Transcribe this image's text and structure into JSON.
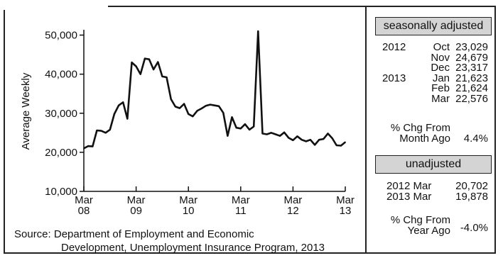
{
  "chart_data": {
    "type": "line",
    "title": "",
    "ylabel": "Average Weekly",
    "xlabel": "",
    "ylim": [
      10000,
      51000
    ],
    "yticks": [
      10000,
      20000,
      30000,
      40000,
      50000
    ],
    "ytick_labels": [
      "10,000",
      "20,000",
      "30,000",
      "40,000",
      "50,000"
    ],
    "xtick_labels": [
      {
        "top": "Mar",
        "bottom": "08"
      },
      {
        "top": "Mar",
        "bottom": "09"
      },
      {
        "top": "Mar",
        "bottom": "10"
      },
      {
        "top": "Mar",
        "bottom": "11"
      },
      {
        "top": "Mar",
        "bottom": "12"
      },
      {
        "top": "Mar",
        "bottom": "13"
      }
    ],
    "x_unit": "months since Mar 2008",
    "grid": false,
    "series": [
      {
        "color": "#111111",
        "x": [
          0,
          1,
          2,
          3,
          4,
          5,
          6,
          7,
          8,
          9,
          10,
          11,
          12,
          13,
          14,
          15,
          16,
          17,
          18,
          19,
          20,
          21,
          22,
          23,
          24,
          25,
          26,
          27,
          28,
          29,
          30,
          31,
          32,
          33,
          34,
          35,
          36,
          37,
          38,
          39,
          40,
          41,
          42,
          43,
          44,
          45,
          46,
          47,
          48,
          49,
          50,
          51,
          52,
          53,
          54,
          55,
          56,
          57,
          58,
          59,
          60
        ],
        "y": [
          21000,
          21600,
          21500,
          25600,
          25500,
          25000,
          25800,
          29800,
          32000,
          32800,
          28600,
          43000,
          42000,
          40000,
          44000,
          43800,
          41200,
          43100,
          39400,
          39200,
          33600,
          31700,
          31300,
          32400,
          29800,
          29200,
          30600,
          31200,
          31900,
          32200,
          32000,
          31800,
          30100,
          24200,
          29000,
          26300,
          26100,
          27200,
          25800,
          26600,
          51000,
          24800,
          24600,
          25000,
          24600,
          24200,
          25100,
          23700,
          23100,
          24100,
          23200,
          22800,
          23200,
          21900,
          23200,
          23400,
          24800,
          23600,
          21800,
          21700,
          22600
        ]
      }
    ]
  },
  "panel": {
    "seasonal_header": "seasonally adjusted",
    "seasonal_rows": [
      {
        "year": "2012",
        "month": "Oct",
        "value": "23,029"
      },
      {
        "year": "",
        "month": "Nov",
        "value": "24,679"
      },
      {
        "year": "",
        "month": "Dec",
        "value": "23,317"
      },
      {
        "year": "2013",
        "month": "Jan",
        "value": "21,623"
      },
      {
        "year": "",
        "month": "Feb",
        "value": "21,624"
      },
      {
        "year": "",
        "month": "Mar",
        "value": "22,576"
      }
    ],
    "month_chg_line1": "% Chg From",
    "month_chg_line2": "Month Ago",
    "month_chg_value": "4.4%",
    "unadjusted_header": "unadjusted",
    "unadjusted_rows": [
      {
        "label": "2012 Mar",
        "value": "20,702"
      },
      {
        "label": "2013 Mar",
        "value": "19,878"
      }
    ],
    "year_chg_line1": "% Chg From",
    "year_chg_line2": "Year Ago",
    "year_chg_value": "-4.0%"
  },
  "source": {
    "line1": "Source: Department of Employment and Economic",
    "line2": "Development, Unemployment Insurance Program, 2013"
  }
}
